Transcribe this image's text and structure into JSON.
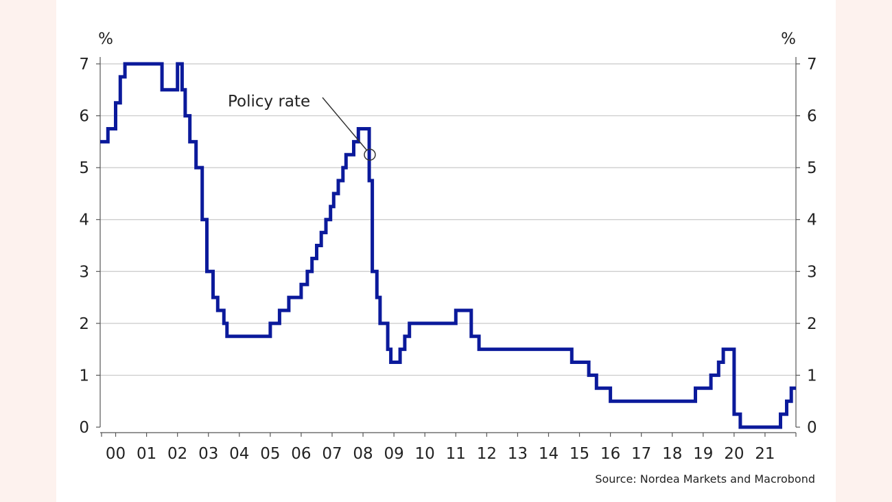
{
  "chart_data": {
    "type": "line",
    "title": "",
    "ylabel_left": "%",
    "ylabel_right": "%",
    "source": "Source: Nordea Markets and Macrobond",
    "annotation": {
      "text": "Policy rate",
      "x": 2008.22,
      "y": 5.25
    },
    "xlim": [
      1999.5,
      2022.0
    ],
    "ylim": [
      0,
      7
    ],
    "y_ticks": [
      "0",
      "1",
      "2",
      "3",
      "4",
      "5",
      "6",
      "7"
    ],
    "x_tick_labels": [
      "00",
      "01",
      "02",
      "03",
      "04",
      "05",
      "06",
      "07",
      "08",
      "09",
      "10",
      "11",
      "12",
      "13",
      "14",
      "15",
      "16",
      "17",
      "18",
      "19",
      "20",
      "21"
    ],
    "grid": "horizontal",
    "colors": {
      "line": "#0b1a9b",
      "grid": "#c8c8c8",
      "axis": "#555555"
    },
    "series": [
      {
        "name": "Policy rate",
        "style": "step",
        "x": [
          1999.5,
          1999.75,
          2000.0,
          2000.15,
          2000.3,
          2000.4,
          2001.0,
          2001.5,
          2002.0,
          2002.15,
          2002.25,
          2002.4,
          2002.6,
          2002.8,
          2002.95,
          2003.15,
          2003.3,
          2003.5,
          2003.6,
          2003.7,
          2004.0,
          2005.0,
          2005.3,
          2005.6,
          2006.0,
          2006.2,
          2006.35,
          2006.5,
          2006.65,
          2006.8,
          2006.95,
          2007.05,
          2007.2,
          2007.35,
          2007.45,
          2007.6,
          2007.7,
          2007.85,
          2008.0,
          2008.2,
          2008.3,
          2008.45,
          2008.55,
          2008.8,
          2008.9,
          2009.0,
          2009.05,
          2009.2,
          2009.35,
          2009.5,
          2009.7,
          2009.8,
          2010.0,
          2010.35,
          2011.0,
          2011.5,
          2011.75,
          2012.0,
          2014.75,
          2015.3,
          2015.55,
          2016.0,
          2017.0,
          2018.75,
          2019.25,
          2019.5,
          2019.65,
          2020.0,
          2020.2,
          2020.3,
          2021.5,
          2021.7,
          2021.85,
          2022.0
        ],
        "y": [
          5.5,
          5.75,
          6.25,
          6.75,
          7.0,
          7.0,
          7.0,
          6.5,
          7.0,
          6.5,
          6.0,
          5.5,
          5.0,
          4.0,
          3.0,
          2.5,
          2.25,
          2.0,
          1.75,
          1.75,
          1.75,
          2.0,
          2.25,
          2.5,
          2.75,
          3.0,
          3.25,
          3.5,
          3.75,
          4.0,
          4.25,
          4.5,
          4.75,
          5.0,
          5.25,
          5.25,
          5.5,
          5.75,
          5.75,
          4.75,
          3.0,
          2.5,
          2.0,
          1.5,
          1.25,
          1.25,
          1.25,
          1.5,
          1.75,
          2.0,
          2.0,
          2.0,
          2.0,
          2.0,
          2.25,
          1.75,
          1.5,
          1.5,
          1.25,
          1.0,
          0.75,
          0.5,
          0.5,
          0.75,
          1.0,
          1.25,
          1.5,
          0.25,
          0.0,
          0.0,
          0.25,
          0.5,
          0.75,
          0.75
        ]
      }
    ]
  }
}
